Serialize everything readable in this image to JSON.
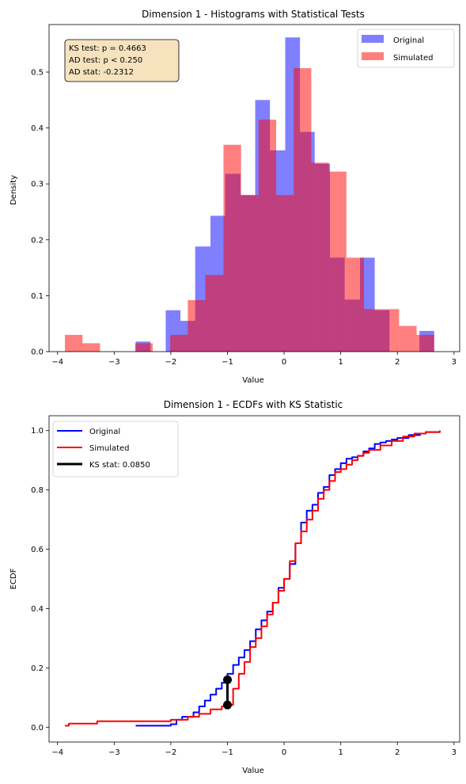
{
  "chart_data": [
    {
      "type": "bar",
      "title": "Dimension 1 - Histograms with Statistical Tests",
      "xlabel": "Value",
      "ylabel": "Density",
      "xlim": [
        -4.15,
        3.1
      ],
      "ylim": [
        0,
        0.585
      ],
      "xticks": [
        -4,
        -3,
        -2,
        -1,
        0,
        1,
        2,
        3
      ],
      "yticks": [
        0.0,
        0.1,
        0.2,
        0.3,
        0.4,
        0.5
      ],
      "legend_position": "top-right",
      "annotation_lines": [
        "KS test: p = 0.4663",
        "AD test: p < 0.250",
        "AD stat: -0.2312"
      ],
      "series": [
        {
          "name": "Original",
          "color": "#0000ff",
          "opacity": 0.5,
          "bin_edges": [
            -2.62,
            -2.36,
            -2.09,
            -1.83,
            -1.57,
            -1.3,
            -1.04,
            -0.77,
            -0.51,
            -0.25,
            0.02,
            0.28,
            0.54,
            0.81,
            1.07,
            1.34,
            1.6,
            1.86,
            2.13,
            2.39,
            2.65
          ],
          "values": [
            0.018,
            0.0,
            0.074,
            0.055,
            0.188,
            0.243,
            0.318,
            0.28,
            0.45,
            0.36,
            0.562,
            0.393,
            0.336,
            0.168,
            0.093,
            0.168,
            0.074,
            0.0,
            0.0,
            0.037
          ]
        },
        {
          "name": "Simulated",
          "color": "#ff0000",
          "opacity": 0.5,
          "bin_edges": [
            -3.87,
            -3.56,
            -3.25,
            -2.94,
            -2.63,
            -2.32,
            -2.01,
            -1.7,
            -1.39,
            -1.07,
            -0.76,
            -0.45,
            -0.14,
            0.17,
            0.48,
            0.79,
            1.1,
            1.41,
            1.72,
            2.03,
            2.34,
            2.65
          ],
          "values": [
            0.03,
            0.015,
            0.0,
            0.0,
            0.015,
            0.0,
            0.03,
            0.092,
            0.137,
            0.37,
            0.28,
            0.415,
            0.28,
            0.507,
            0.338,
            0.322,
            0.168,
            0.076,
            0.076,
            0.046,
            0.03
          ]
        }
      ]
    },
    {
      "type": "line",
      "title": "Dimension 1 - ECDFs with KS Statistic",
      "xlabel": "Value",
      "ylabel": "ECDF",
      "xlim": [
        -4.15,
        3.1
      ],
      "ylim": [
        -0.05,
        1.05
      ],
      "xticks": [
        -4,
        -3,
        -2,
        -1,
        0,
        1,
        2,
        3
      ],
      "yticks": [
        0.0,
        0.2,
        0.4,
        0.6,
        0.8,
        1.0
      ],
      "legend_position": "top-left",
      "series": [
        {
          "name": "Original",
          "color": "#0000ff",
          "x": [
            -2.62,
            -2.0,
            -1.9,
            -1.8,
            -1.6,
            -1.5,
            -1.4,
            -1.3,
            -1.2,
            -1.1,
            -1.04,
            -1.0,
            -0.9,
            -0.8,
            -0.7,
            -0.6,
            -0.5,
            -0.4,
            -0.3,
            -0.2,
            -0.1,
            0.0,
            0.1,
            0.2,
            0.3,
            0.4,
            0.5,
            0.6,
            0.7,
            0.8,
            0.9,
            1.0,
            1.1,
            1.2,
            1.3,
            1.4,
            1.5,
            1.6,
            1.7,
            1.8,
            1.9,
            2.0,
            2.2,
            2.4,
            2.5,
            2.75
          ],
          "y": [
            0.005,
            0.01,
            0.025,
            0.035,
            0.05,
            0.07,
            0.09,
            0.11,
            0.13,
            0.15,
            0.16,
            0.18,
            0.21,
            0.235,
            0.26,
            0.29,
            0.33,
            0.36,
            0.39,
            0.42,
            0.47,
            0.5,
            0.55,
            0.62,
            0.69,
            0.73,
            0.75,
            0.79,
            0.81,
            0.85,
            0.87,
            0.89,
            0.905,
            0.91,
            0.915,
            0.93,
            0.94,
            0.955,
            0.96,
            0.965,
            0.97,
            0.975,
            0.985,
            0.99,
            0.995,
            1.0
          ]
        },
        {
          "name": "Simulated",
          "color": "#ff0000",
          "x": [
            -3.87,
            -3.8,
            -3.3,
            -2.6,
            -2.0,
            -1.7,
            -1.5,
            -1.3,
            -1.1,
            -1.04,
            -0.9,
            -0.8,
            -0.7,
            -0.6,
            -0.5,
            -0.4,
            -0.3,
            -0.2,
            -0.1,
            0.0,
            0.1,
            0.2,
            0.3,
            0.4,
            0.5,
            0.6,
            0.7,
            0.8,
            0.9,
            1.0,
            1.1,
            1.2,
            1.3,
            1.4,
            1.5,
            1.7,
            1.9,
            2.1,
            2.3,
            2.5,
            2.75
          ],
          "y": [
            0.005,
            0.012,
            0.02,
            0.02,
            0.025,
            0.035,
            0.045,
            0.06,
            0.07,
            0.075,
            0.13,
            0.18,
            0.22,
            0.27,
            0.3,
            0.34,
            0.38,
            0.42,
            0.46,
            0.5,
            0.56,
            0.62,
            0.66,
            0.7,
            0.73,
            0.77,
            0.8,
            0.83,
            0.86,
            0.87,
            0.885,
            0.9,
            0.915,
            0.925,
            0.935,
            0.95,
            0.965,
            0.98,
            0.99,
            0.995,
            1.0
          ]
        },
        {
          "name": "KS stat: 0.0850",
          "color": "#000000",
          "x": [
            -1.0,
            -1.0
          ],
          "y": [
            0.075,
            0.16
          ]
        }
      ]
    }
  ]
}
